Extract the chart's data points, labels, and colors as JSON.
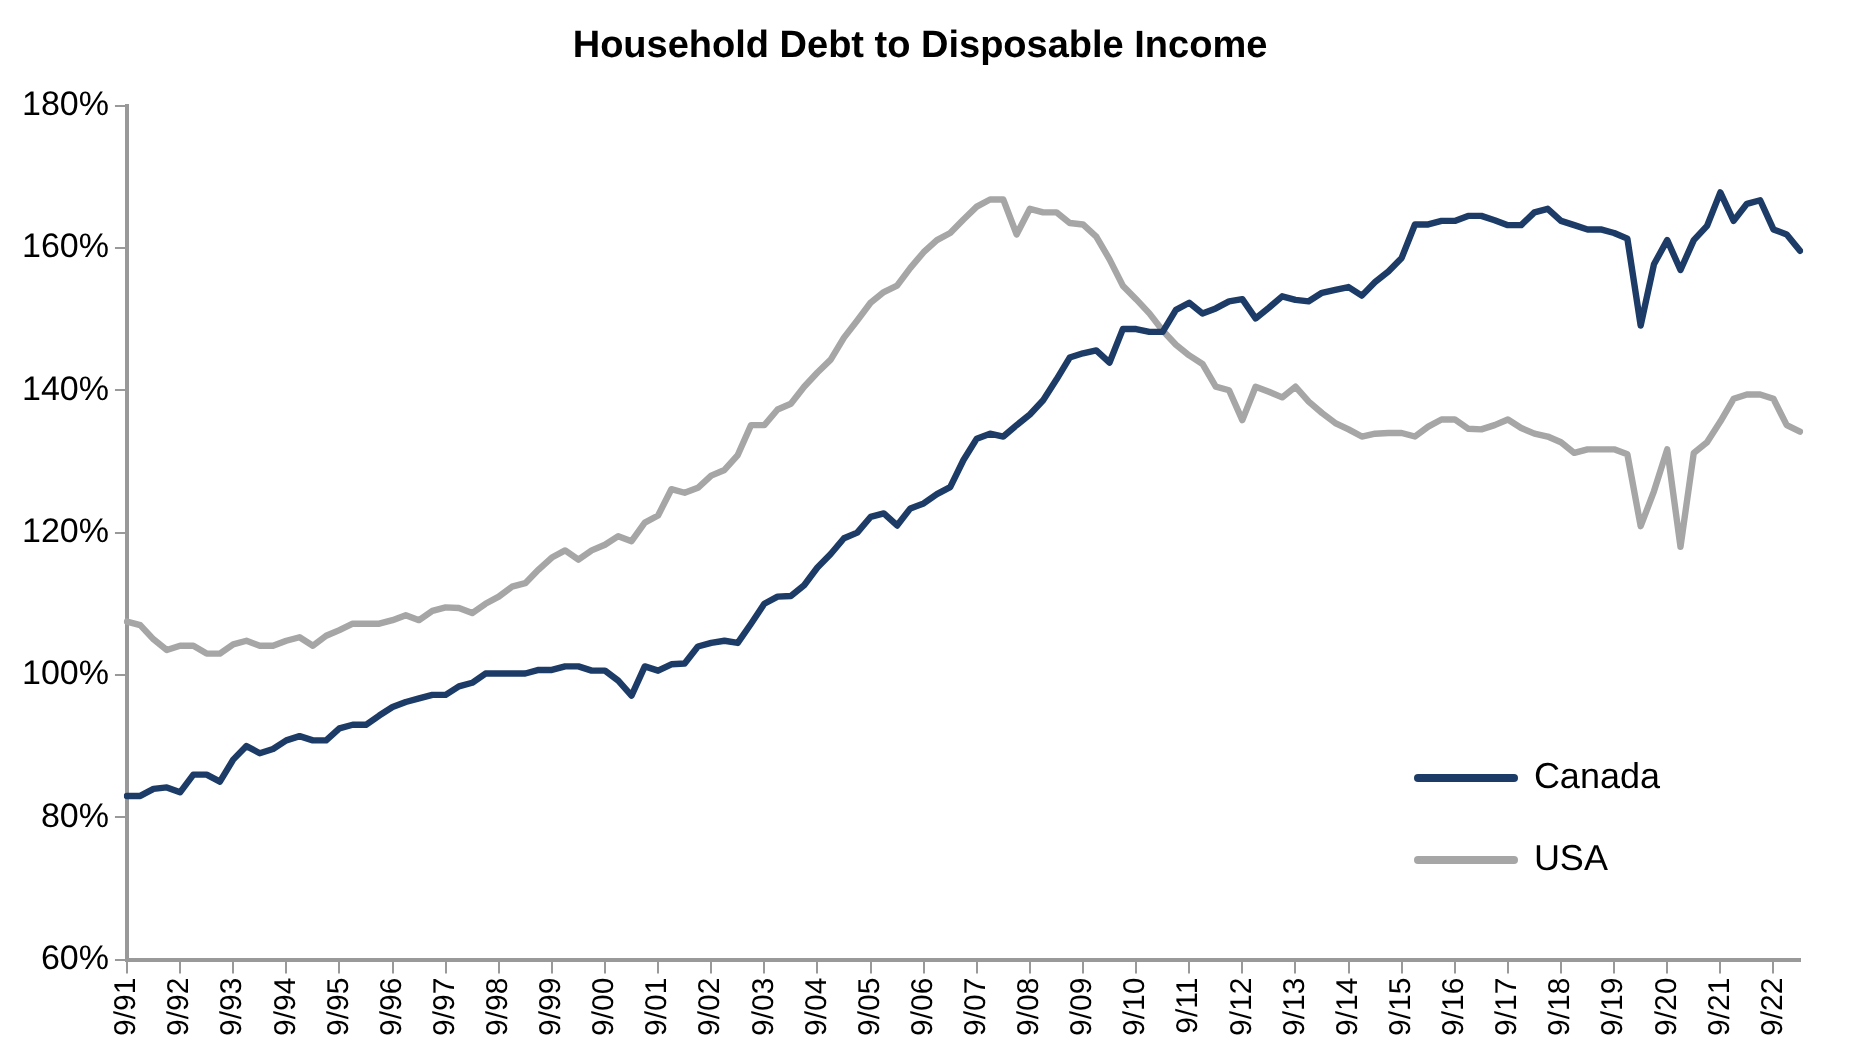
{
  "chart_data": {
    "type": "line",
    "title": "Household Debt to Disposable Income",
    "categories": [
      "9/91",
      null,
      null,
      null,
      "9/92",
      null,
      null,
      null,
      "9/93",
      null,
      null,
      null,
      "9/94",
      null,
      null,
      null,
      "9/95",
      null,
      null,
      null,
      "9/96",
      null,
      null,
      null,
      "9/97",
      null,
      null,
      null,
      "9/98",
      null,
      null,
      null,
      "9/99",
      null,
      null,
      null,
      "9/00",
      null,
      null,
      null,
      "9/01",
      null,
      null,
      null,
      "9/02",
      null,
      null,
      null,
      "9/03",
      null,
      null,
      null,
      "9/04",
      null,
      null,
      null,
      "9/05",
      null,
      null,
      null,
      "9/06",
      null,
      null,
      null,
      "9/07",
      null,
      null,
      null,
      "9/08",
      null,
      null,
      null,
      "9/09",
      null,
      null,
      null,
      "9/10",
      null,
      null,
      null,
      "9/11",
      null,
      null,
      null,
      "9/12",
      null,
      null,
      null,
      "9/13",
      null,
      null,
      null,
      "9/14",
      null,
      null,
      null,
      "9/15",
      null,
      null,
      null,
      "9/16",
      null,
      null,
      null,
      "9/17",
      null,
      null,
      null,
      "9/18",
      null,
      null,
      null,
      "9/19",
      null,
      null,
      null,
      "9/20",
      null,
      null,
      null,
      "9/21",
      null,
      null,
      null,
      "9/22",
      null,
      null
    ],
    "series": [
      {
        "name": "Canada",
        "color": "#1c3b66",
        "values": [
          83,
          83,
          84,
          84.2,
          83.5,
          86,
          86,
          85,
          88.1,
          90,
          89,
          89.6,
          90.8,
          91.4,
          90.8,
          90.8,
          92.5,
          93,
          93,
          94.3,
          95.5,
          96.2,
          96.7,
          97.2,
          97.2,
          98.4,
          98.9,
          100.2,
          100.2,
          100.2,
          100.2,
          100.7,
          100.7,
          101.2,
          101.2,
          100.6,
          100.6,
          99.2,
          97.1,
          101.2,
          100.6,
          101.5,
          101.6,
          104,
          104.5,
          104.8,
          104.5,
          107.2,
          110,
          111,
          111.1,
          112.6,
          115.1,
          117,
          119.2,
          120,
          122.2,
          122.7,
          121,
          123.4,
          124.1,
          125.4,
          126.4,
          130.2,
          133.2,
          133.9,
          133.5,
          135.1,
          136.6,
          138.6,
          141.5,
          144.6,
          145.2,
          145.6,
          143.9,
          148.6,
          148.6,
          148.2,
          148.2,
          151.3,
          152.3,
          150.8,
          151.5,
          152.5,
          152.8,
          150.1,
          151.6,
          153.2,
          152.7,
          152.5,
          153.7,
          154.1,
          154.5,
          153.3,
          155.2,
          156.7,
          158.6,
          163.3,
          163.3,
          163.8,
          163.8,
          164.5,
          164.5,
          163.9,
          163.2,
          163.2,
          165,
          165.5,
          163.8,
          163.2,
          162.6,
          162.6,
          162.1,
          161.3,
          149.1,
          157.7,
          161.1,
          156.9,
          161.1,
          163.1,
          167.8,
          163.8,
          166.2,
          166.7,
          162.6,
          161.9,
          159.6
        ]
      },
      {
        "name": "USA",
        "color": "#a6a6a6",
        "values": [
          107.5,
          107,
          105,
          103.5,
          104.1,
          104.1,
          103,
          103,
          104.3,
          104.8,
          104.1,
          104.1,
          104.8,
          105.3,
          104.1,
          105.5,
          106.3,
          107.2,
          107.2,
          107.2,
          107.7,
          108.4,
          107.7,
          109,
          109.5,
          109.4,
          108.7,
          110,
          111,
          112.4,
          112.9,
          114.8,
          116.5,
          117.5,
          116.2,
          117.5,
          118.3,
          119.5,
          118.8,
          121.4,
          122.4,
          126.1,
          125.6,
          126.3,
          128,
          128.8,
          130.9,
          135.1,
          135.1,
          137.3,
          138.1,
          140.5,
          142.5,
          144.3,
          147.4,
          149.8,
          152.3,
          153.8,
          154.7,
          157.2,
          159.4,
          161.1,
          162.1,
          164,
          165.8,
          166.8,
          166.8,
          161.9,
          165.5,
          165,
          165,
          163.5,
          163.3,
          161.6,
          158.4,
          154.7,
          152.8,
          150.8,
          148.4,
          146.4,
          144.9,
          143.7,
          140.5,
          140,
          135.8,
          140.5,
          139.8,
          139,
          140.5,
          138.4,
          136.8,
          135.4,
          134.5,
          133.5,
          133.9,
          134,
          134,
          133.5,
          134.9,
          135.9,
          135.9,
          134.6,
          134.5,
          135.1,
          135.9,
          134.7,
          133.9,
          133.5,
          132.7,
          131.2,
          131.7,
          131.7,
          131.7,
          131,
          120.9,
          125.8,
          131.7,
          118,
          131.2,
          132.7,
          135.6,
          138.8,
          139.4,
          139.4,
          138.8,
          135.1,
          134.2
        ]
      }
    ],
    "ylim": [
      60,
      180
    ],
    "yticks": [
      {
        "value": 60,
        "label": "60%"
      },
      {
        "value": 80,
        "label": "80%"
      },
      {
        "value": 100,
        "label": "100%"
      },
      {
        "value": 120,
        "label": "120%"
      },
      {
        "value": 140,
        "label": "140%"
      },
      {
        "value": 160,
        "label": "160%"
      },
      {
        "value": 180,
        "label": "180%"
      }
    ],
    "grid": false,
    "legend": "bottom right",
    "marker": "none",
    "line_style": "solid"
  }
}
